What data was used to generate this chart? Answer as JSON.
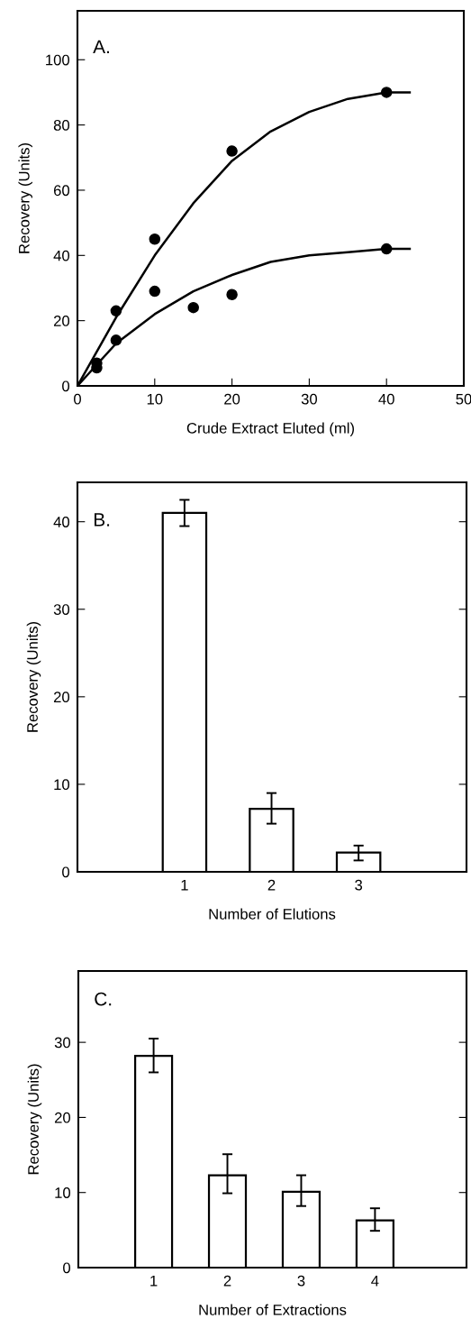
{
  "chart_data": [
    {
      "type": "scatter",
      "annotations": [
        "A."
      ],
      "xlabel": "Crude Extract Eluted (ml)",
      "ylabel": "Recovery (Units)",
      "xlim": [
        0,
        50
      ],
      "ylim": [
        0,
        115
      ],
      "xticks": [
        0,
        10,
        20,
        30,
        40,
        50
      ],
      "yticks": [
        0,
        20,
        40,
        60,
        80,
        100
      ],
      "grid": false,
      "series": [
        {
          "type": "scatter",
          "marker": "circle",
          "color": "#000000",
          "x": [
            2.5,
            5,
            10,
            20,
            40
          ],
          "values": [
            7,
            23,
            45,
            72,
            90
          ]
        },
        {
          "type": "scatter",
          "marker": "circle",
          "color": "#000000",
          "x": [
            2.5,
            5,
            10,
            15,
            20,
            40
          ],
          "values": [
            5.5,
            14,
            29,
            24,
            28,
            42
          ]
        },
        {
          "type": "line",
          "color": "#000000",
          "x": [
            0,
            5,
            10,
            15,
            20,
            25,
            30,
            35,
            40,
            43
          ],
          "values": [
            0,
            21,
            40,
            56,
            69,
            78,
            84,
            88,
            90,
            90
          ]
        },
        {
          "type": "line",
          "color": "#000000",
          "x": [
            0,
            5,
            10,
            15,
            20,
            25,
            30,
            35,
            40,
            43
          ],
          "values": [
            0,
            13,
            22,
            29,
            34,
            38,
            40,
            41,
            42,
            42
          ]
        }
      ]
    },
    {
      "type": "bar",
      "annotations": [
        "B."
      ],
      "xlabel": "Number of Elutions",
      "ylabel": "Recovery (Units)",
      "categories": [
        "1",
        "2",
        "3"
      ],
      "values": [
        41,
        7.2,
        2.2
      ],
      "errors": [
        [
          39.5,
          42.5
        ],
        [
          5.5,
          9
        ],
        [
          1.3,
          3
        ]
      ],
      "color": "#ffffff",
      "ylim": [
        0,
        44.5
      ],
      "yticks": [
        0,
        10,
        20,
        30,
        40
      ],
      "grid": false
    },
    {
      "type": "bar",
      "annotations": [
        "C."
      ],
      "xlabel": "Number of Extractions",
      "ylabel": "Recovery (Units)",
      "categories": [
        "1",
        "2",
        "3",
        "4"
      ],
      "values": [
        28.2,
        12.3,
        10.1,
        6.3
      ],
      "errors": [
        [
          26,
          30.5
        ],
        [
          9.9,
          15.1
        ],
        [
          8.2,
          12.3
        ],
        [
          4.9,
          7.9
        ]
      ],
      "color": "#ffffff",
      "ylim": [
        0,
        39.5
      ],
      "yticks": [
        0,
        10,
        20,
        30
      ],
      "grid": false
    }
  ]
}
